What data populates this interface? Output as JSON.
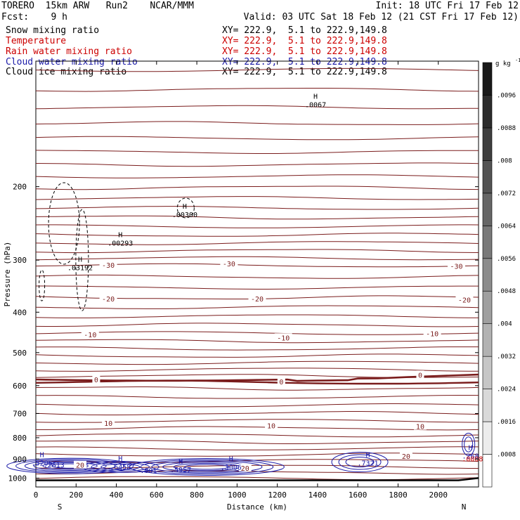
{
  "header": {
    "left_line1": "TORERO  15km ARW   Run2    NCAR/MMM",
    "left_line2": "Fcst:    9 h",
    "right_line1": "Init: 18 UTC Fri 17 Feb 12",
    "right_line2": "Valid: 03 UTC Sat 18 Feb 12 (21 CST Fri 17 Feb 12)"
  },
  "legend": [
    {
      "name": "Snow mixing ratio",
      "color": "#000000",
      "xy": "XY= 222.9,  5.1 to 222.9,149.8",
      "xy_color": "#000000"
    },
    {
      "name": "Temperature",
      "color": "#cc0000",
      "xy": "XY= 222.9,  5.1 to 222.9,149.8",
      "xy_color": "#cc0000"
    },
    {
      "name": "Rain water mixing ratio",
      "color": "#cc0000",
      "xy": "XY= 222.9,  5.1 to 222.9,149.8",
      "xy_color": "#cc0000"
    },
    {
      "name": "Cloud water mixing ratio",
      "color": "#1a1aa8",
      "xy": "XY= 222.9,  5.1 to 222.9,149.8",
      "xy_color": "#1a1aa8"
    },
    {
      "name": "Cloud ice mixing ratio",
      "color": "#000000",
      "xy": "XY= 222.9,  5.1 to 222.9,149.8",
      "xy_color": "#000000"
    }
  ],
  "colors": {
    "temperature": "#7a1c1c",
    "cloud_water": "#1a1aa8",
    "snow": "#000000",
    "rain": "#cc0000",
    "terrain": "#000000"
  },
  "chart_data": {
    "type": "contour",
    "xlabel": "Distance (km)",
    "ylabel": "Pressure (hPa)",
    "x_ticks": [
      0,
      200,
      400,
      600,
      800,
      1000,
      1200,
      1400,
      1600,
      1800,
      2000
    ],
    "y_ticks": [
      200,
      300,
      400,
      500,
      600,
      700,
      800,
      900,
      1000
    ],
    "xlim": [
      0,
      2200
    ],
    "ylim": [
      1050,
      100
    ],
    "y_scale": "log",
    "end_labels": {
      "left": "S",
      "right": "N"
    },
    "temperature_contour_labels": [
      {
        "text": "-30",
        "x": 360,
        "p": 308
      },
      {
        "text": "-30",
        "x": 960,
        "p": 306
      },
      {
        "text": "-30",
        "x": 2090,
        "p": 310
      },
      {
        "text": "-20",
        "x": 360,
        "p": 371
      },
      {
        "text": "-20",
        "x": 1100,
        "p": 371
      },
      {
        "text": "-20",
        "x": 2130,
        "p": 373
      },
      {
        "text": "-10",
        "x": 270,
        "p": 452
      },
      {
        "text": "-10",
        "x": 1230,
        "p": 460
      },
      {
        "text": "-10",
        "x": 1970,
        "p": 450
      },
      {
        "text": "0",
        "x": 300,
        "p": 580
      },
      {
        "text": "0",
        "x": 1220,
        "p": 587
      },
      {
        "text": "0",
        "x": 1910,
        "p": 565
      },
      {
        "text": "10",
        "x": 360,
        "p": 738
      },
      {
        "text": "10",
        "x": 1170,
        "p": 748
      },
      {
        "text": "10",
        "x": 1910,
        "p": 751
      },
      {
        "text": "20",
        "x": 220,
        "p": 930
      },
      {
        "text": "20",
        "x": 1040,
        "p": 945
      },
      {
        "text": "20",
        "x": 1840,
        "p": 885
      }
    ],
    "cloud_ice_maxima": [
      {
        "label": "H",
        "value": ".03192",
        "x": 220,
        "p": 315
      },
      {
        "label": "H",
        "value": ".00293",
        "x": 420,
        "p": 275
      },
      {
        "label": "H",
        "value": ".00300",
        "x": 740,
        "p": 235
      }
    ],
    "snow_maxima": [
      {
        "label": "H",
        "value": ".0067",
        "x": 1390,
        "p": 128
      }
    ],
    "cloud_water_maxima": [
      {
        "label": "H",
        "value": ".5206",
        "x": 30,
        "p": 925
      },
      {
        "label": "",
        "value": ".2613",
        "x": 90,
        "p": 935
      },
      {
        "label": "H",
        "value": ".6458",
        "x": 420,
        "p": 945
      },
      {
        "label": "",
        "value": ".001",
        "x": 560,
        "p": 965
      },
      {
        "label": "H",
        "value": ".5957",
        "x": 720,
        "p": 960
      },
      {
        "label": "H",
        "value": ".3006",
        "x": 970,
        "p": 948
      },
      {
        "label": "H",
        "value": ".7321",
        "x": 1650,
        "p": 925
      },
      {
        "label": "H",
        "value": ".268",
        "x": 2160,
        "p": 890
      }
    ],
    "rain_maxima": [
      {
        "label": "",
        "value": ".0008",
        "x": 2170,
        "p": 905
      }
    ],
    "colorbar": {
      "unit": "g kg",
      "unit_sup": "-1",
      "ticks": [
        ".0008",
        ".0016",
        ".0024",
        ".0032",
        ".004",
        ".0048",
        ".0056",
        ".0064",
        ".0072",
        ".008",
        ".0088",
        ".0096"
      ]
    }
  }
}
